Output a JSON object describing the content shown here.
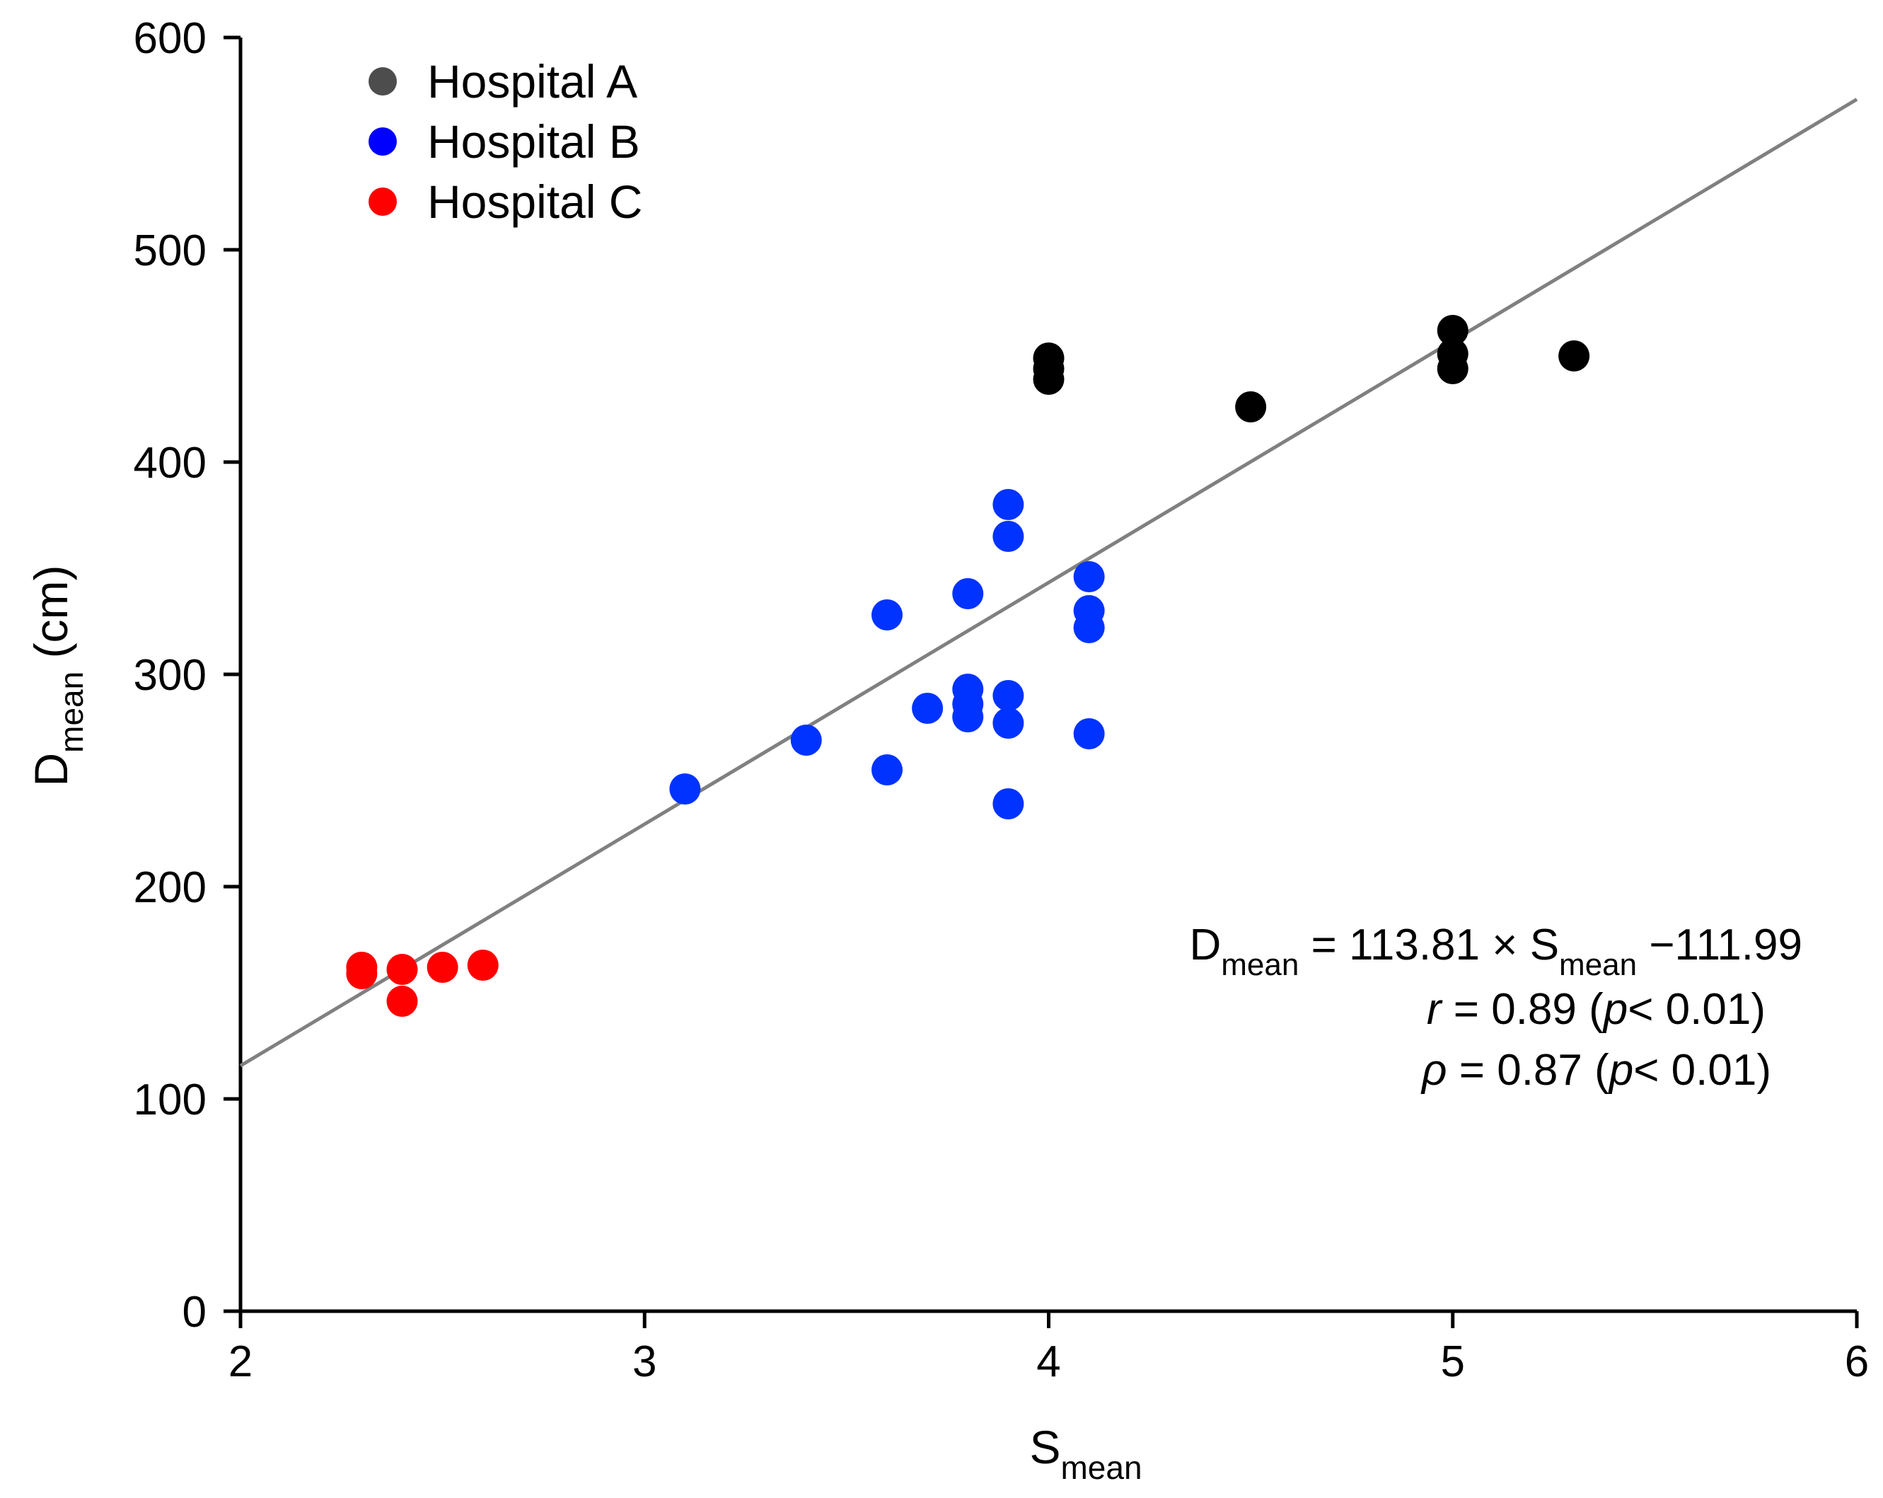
{
  "chart_data": {
    "type": "scatter",
    "xlabel_main": "S",
    "xlabel_sub": "mean",
    "ylabel_main": "D",
    "ylabel_sub": "mean",
    "ylabel_unit": " (cm)",
    "xlim": [
      2,
      6
    ],
    "ylim": [
      0,
      600
    ],
    "xticks": [
      2,
      3,
      4,
      5,
      6
    ],
    "yticks": [
      0,
      100,
      200,
      300,
      400,
      500,
      600
    ],
    "grid": false,
    "legend_position": "top-left",
    "series": [
      {
        "name": "Hospital A",
        "color": "#000000",
        "legend_color": "#4d4d4d",
        "points": [
          [
            4.0,
            449
          ],
          [
            4.0,
            444
          ],
          [
            4.0,
            439
          ],
          [
            4.5,
            426
          ],
          [
            5.0,
            462
          ],
          [
            5.0,
            451
          ],
          [
            5.0,
            444
          ],
          [
            5.3,
            450
          ]
        ]
      },
      {
        "name": "Hospital B",
        "color": "#0033ff",
        "legend_color": "#0000ff",
        "points": [
          [
            3.1,
            246
          ],
          [
            3.4,
            269
          ],
          [
            3.6,
            328
          ],
          [
            3.6,
            255
          ],
          [
            3.7,
            284
          ],
          [
            3.8,
            338
          ],
          [
            3.8,
            293
          ],
          [
            3.8,
            286
          ],
          [
            3.8,
            280
          ],
          [
            3.9,
            380
          ],
          [
            3.9,
            365
          ],
          [
            3.9,
            290
          ],
          [
            3.9,
            277
          ],
          [
            3.9,
            239
          ],
          [
            4.1,
            346
          ],
          [
            4.1,
            330
          ],
          [
            4.1,
            322
          ],
          [
            4.1,
            272
          ]
        ]
      },
      {
        "name": "Hospital C",
        "color": "#ff0000",
        "legend_color": "#ff0000",
        "points": [
          [
            2.3,
            162
          ],
          [
            2.3,
            159
          ],
          [
            2.4,
            161
          ],
          [
            2.4,
            146
          ],
          [
            2.5,
            162
          ],
          [
            2.6,
            163
          ]
        ]
      }
    ],
    "fit_line": {
      "slope": 113.81,
      "intercept": -111.99,
      "x_range": [
        2,
        6
      ],
      "color": "#808080"
    },
    "annotation": {
      "eq_lhs_main": "D",
      "eq_lhs_sub": "mean",
      "eq_mid": " = 113.81 × ",
      "eq_rhs_main": "S",
      "eq_rhs_sub": "mean",
      "eq_tail": " −111.99",
      "r_symbol": "r",
      "r_text": " = 0.89 (",
      "r_p": "p",
      "r_tail": "< 0.01)",
      "rho_symbol": "ρ",
      "rho_text": " = 0.87 (",
      "rho_p": "p",
      "rho_tail": "< 0.01)"
    }
  }
}
